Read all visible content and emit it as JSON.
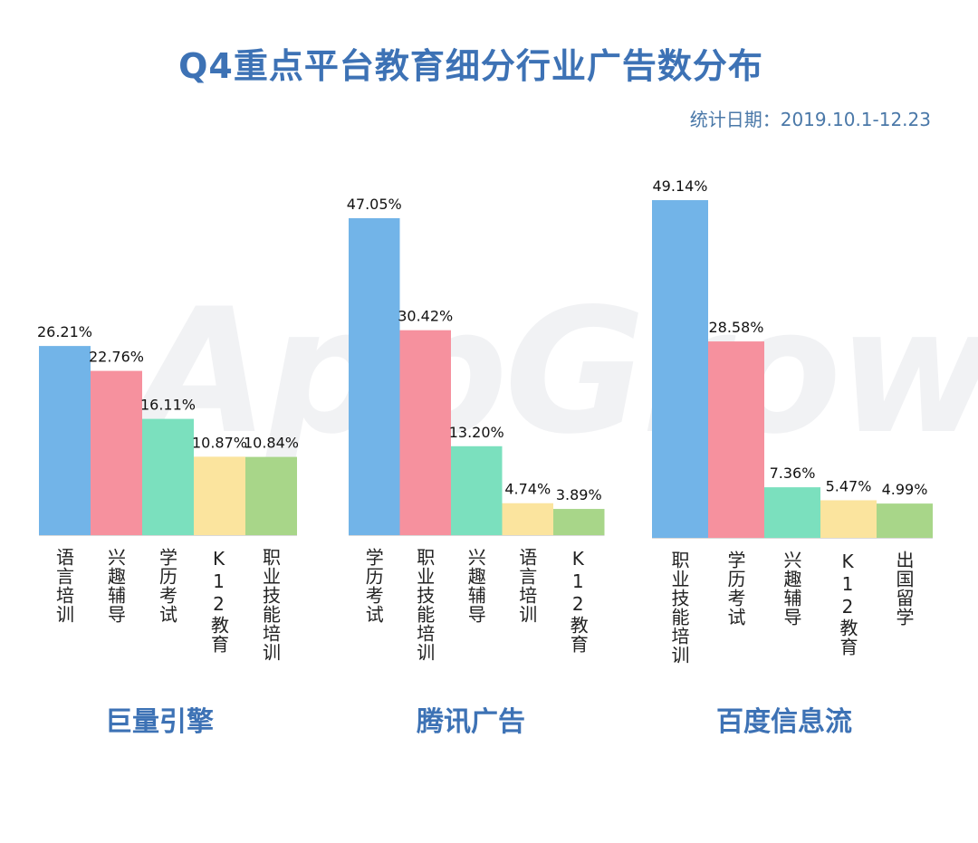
{
  "title": "Q4重点平台教育细分行业广告数分布",
  "subtitle": "统计日期：2019.10.1-12.23",
  "watermark": "AppGrowing",
  "colors": {
    "blue": "#72b4e8",
    "pink": "#f6919e",
    "teal": "#7be0be",
    "yellow": "#fbe49e",
    "green": "#a8d689",
    "title": "#3d72b5"
  },
  "chart_data": [
    {
      "type": "bar",
      "platform": "巨量引擎",
      "categories": [
        "语言培训",
        "兴趣辅导",
        "学历考试",
        "K12教育",
        "职业技能培训"
      ],
      "values": [
        26.21,
        22.76,
        16.11,
        10.87,
        10.84
      ],
      "labels": [
        "26.21%",
        "22.76%",
        "16.11%",
        "10.87%",
        "10.84%"
      ],
      "colors": [
        "#72b4e8",
        "#f6919e",
        "#7be0be",
        "#fbe49e",
        "#a8d689"
      ]
    },
    {
      "type": "bar",
      "platform": "腾讯广告",
      "categories": [
        "学历考试",
        "职业技能培训",
        "兴趣辅导",
        "语言培训",
        "K12教育"
      ],
      "values": [
        47.05,
        30.42,
        13.2,
        4.74,
        3.89
      ],
      "labels": [
        "47.05%",
        "30.42%",
        "13.20%",
        "4.74%",
        "3.89%"
      ],
      "colors": [
        "#72b4e8",
        "#f6919e",
        "#7be0be",
        "#fbe49e",
        "#a8d689"
      ]
    },
    {
      "type": "bar",
      "platform": "百度信息流",
      "categories": [
        "职业技能培训",
        "学历考试",
        "兴趣辅导",
        "K12教育",
        "出国留学"
      ],
      "values": [
        49.14,
        28.58,
        7.36,
        5.47,
        4.99
      ],
      "labels": [
        "49.14%",
        "28.58%",
        "7.36%",
        "5.47%",
        "4.99%"
      ],
      "colors": [
        "#72b4e8",
        "#f6919e",
        "#7be0be",
        "#fbe49e",
        "#a8d689"
      ]
    }
  ]
}
